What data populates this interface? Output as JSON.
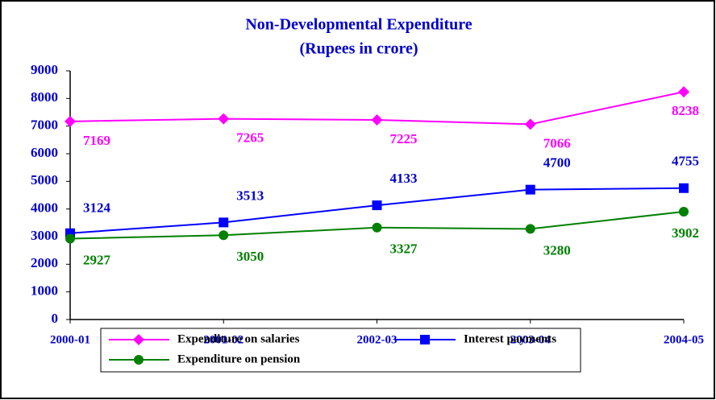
{
  "chart_data": {
    "type": "line",
    "title": "Non-Developmental Expenditure",
    "subtitle": "(Rupees in crore)",
    "categories": [
      "2000-01",
      "2001-02",
      "2002-03",
      "2003-04",
      "2004-05"
    ],
    "series": [
      {
        "name": "Expenditure on salaries",
        "color": "#ff00ff",
        "label_color": "#ff00ff",
        "marker": "diamond",
        "values": [
          7169,
          7265,
          7225,
          7066,
          8238
        ]
      },
      {
        "name": "Interest payments",
        "color": "#0000ff",
        "label_color": "#0000cc",
        "marker": "square",
        "values": [
          3124,
          3513,
          4133,
          4700,
          4755
        ]
      },
      {
        "name": "Expenditure on pension",
        "color": "#008000",
        "label_color": "#008000",
        "marker": "circle",
        "values": [
          2927,
          3050,
          3327,
          3280,
          3902
        ]
      }
    ],
    "ylim": [
      0,
      9000
    ],
    "yticks": [
      0,
      1000,
      2000,
      3000,
      4000,
      5000,
      6000,
      7000,
      8000,
      9000
    ],
    "grid": false
  }
}
